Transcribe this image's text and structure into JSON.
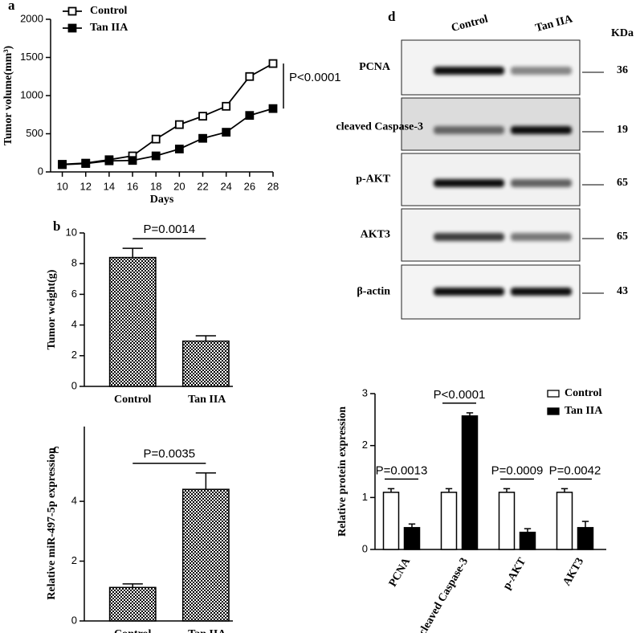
{
  "chart_data": [
    {
      "panel": "a",
      "type": "line",
      "y_label": "Tumor volume(mm³)",
      "x_label": "Days",
      "x": [
        10,
        12,
        14,
        16,
        18,
        20,
        22,
        24,
        26,
        28
      ],
      "xlim": [
        9,
        28
      ],
      "xticks": [
        10,
        12,
        14,
        16,
        18,
        20,
        22,
        24,
        26,
        28
      ],
      "ylim": [
        0,
        2000
      ],
      "yticks": [
        0,
        500,
        1000,
        1500,
        2000
      ],
      "legend": "upper left",
      "series": [
        {
          "name": "Control",
          "color": "#000000",
          "marker": "open-square",
          "values": [
            100,
            115,
            160,
            210,
            430,
            620,
            730,
            860,
            1250,
            1420
          ]
        },
        {
          "name": "Tan IIA",
          "color": "#000000",
          "marker": "filled-square",
          "values": [
            95,
            110,
            145,
            150,
            210,
            300,
            440,
            520,
            740,
            830
          ]
        }
      ],
      "annotation": "P<0.0001"
    },
    {
      "panel": "b",
      "type": "bar",
      "y_label": "Tumor weight(g)",
      "categories": [
        "Control",
        "Tan  IIA"
      ],
      "values": [
        8.4,
        2.95
      ],
      "errors": [
        0.6,
        0.35
      ],
      "pattern": "checkerboard",
      "ylim": [
        0,
        10
      ],
      "yticks": [
        0,
        2,
        4,
        6,
        8,
        10
      ],
      "annotation": "P=0.0014"
    },
    {
      "panel": "c",
      "type": "bar",
      "y_label": "Relative miR-497-5p expression",
      "categories": [
        "Control",
        "Tan  IIA"
      ],
      "values": [
        1.12,
        4.4
      ],
      "errors": [
        0.12,
        0.55
      ],
      "pattern": "checkerboard",
      "ylim": [
        0,
        6.5
      ],
      "yticks": [
        0,
        2,
        4
      ],
      "annotation": "P=0.0035"
    },
    {
      "type": "bar",
      "y_label": "Relative protein expression",
      "categories": [
        "PCNA",
        "cleaved Caspase-3",
        "p-AKT",
        "AKT3"
      ],
      "ylim": [
        0,
        3
      ],
      "yticks": [
        0,
        1,
        2,
        3
      ],
      "legend": "upper right",
      "series": [
        {
          "name": "Control",
          "color": "#ffffff",
          "values": [
            1.1,
            1.1,
            1.1,
            1.1
          ],
          "errors": [
            0.07,
            0.07,
            0.07,
            0.07
          ]
        },
        {
          "name": "Tan IIA",
          "color": "#000000",
          "values": [
            0.42,
            2.57,
            0.33,
            0.42
          ],
          "errors": [
            0.07,
            0.06,
            0.07,
            0.12
          ]
        }
      ],
      "annotations": [
        "P=0.0013",
        "P<0.0001",
        "P=0.0009",
        "P=0.0042"
      ]
    }
  ],
  "blot": {
    "panel": "d",
    "lanes": [
      "Control",
      "Tan IIA"
    ],
    "unit": "KDa",
    "rows": [
      {
        "label": "PCNA",
        "kda": "36"
      },
      {
        "label": "cleaved Caspase-3",
        "kda": "19"
      },
      {
        "label": "p-AKT",
        "kda": "65"
      },
      {
        "label": "AKT3",
        "kda": "65"
      },
      {
        "label": "β-actin",
        "kda": "43"
      }
    ]
  }
}
